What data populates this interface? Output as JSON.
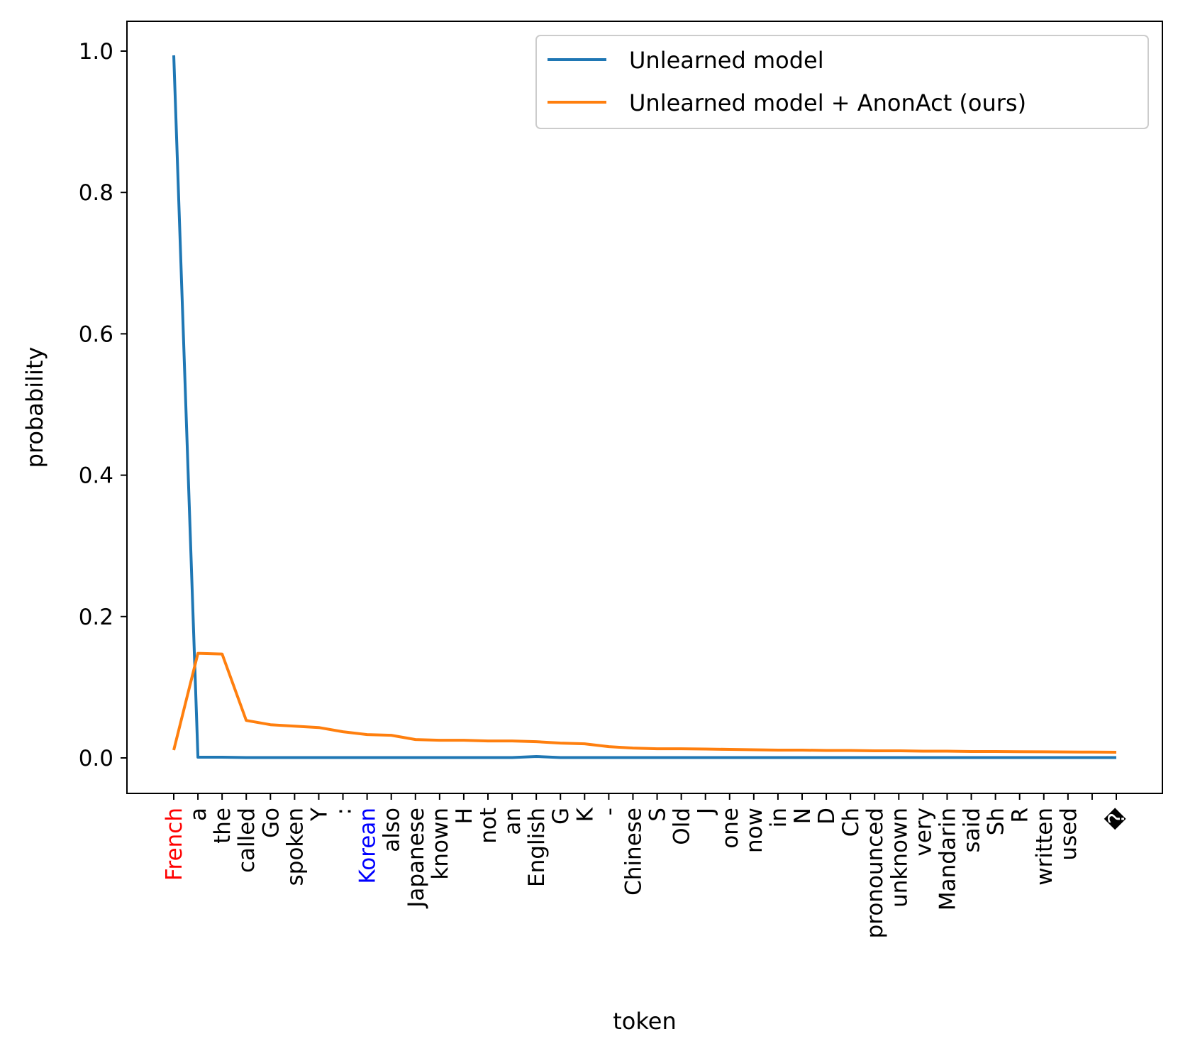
{
  "chart_data": {
    "type": "line",
    "title": "",
    "xlabel": "token",
    "ylabel": "probability",
    "ylim": [
      -0.05,
      1.05
    ],
    "yticks": [
      "0.0",
      "0.2",
      "0.4",
      "0.6",
      "0.8",
      "1.0"
    ],
    "grid": false,
    "legend_position": "top-right",
    "categories": [
      "French",
      "a",
      "the",
      "called",
      "Go",
      "spoken",
      "Y",
      ":",
      "Korean",
      "also",
      "Japanese",
      "known",
      "H",
      "not",
      "an",
      "English",
      "G",
      "K",
      "-",
      "Chinese",
      "S",
      "Old",
      "J",
      "one",
      "now",
      "in",
      "N",
      "D",
      "Ch",
      "pronounced",
      "unknown",
      "very",
      "Mandarin",
      "said",
      "Sh",
      "R",
      "written",
      "used",
      "",
      "�"
    ],
    "category_colors": {
      "French": "#ff0000",
      "Korean": "#0000ff"
    },
    "series": [
      {
        "name": "Unlearned model",
        "color": "#1f77b4",
        "values": [
          0.994,
          0.001,
          0.001,
          0.0005,
          0.0005,
          0.0005,
          0.0005,
          0.0005,
          0.0005,
          0.0005,
          0.0005,
          0.0005,
          0.0005,
          0.0005,
          0.0005,
          0.002,
          0.0005,
          0.0005,
          0.0005,
          0.0005,
          0.0005,
          0.0005,
          0.0005,
          0.0005,
          0.0005,
          0.0005,
          0.0005,
          0.0005,
          0.0005,
          0.0005,
          0.0005,
          0.0005,
          0.0005,
          0.0005,
          0.0005,
          0.0005,
          0.0005,
          0.0005,
          0.0005,
          0.0005
        ]
      },
      {
        "name": "Unlearned model + AnonAct (ours)",
        "color": "#ff7f0e",
        "values": [
          0.011,
          0.148,
          0.147,
          0.053,
          0.047,
          0.045,
          0.043,
          0.037,
          0.033,
          0.032,
          0.026,
          0.025,
          0.025,
          0.024,
          0.024,
          0.023,
          0.021,
          0.02,
          0.016,
          0.014,
          0.013,
          0.013,
          0.0125,
          0.012,
          0.0115,
          0.011,
          0.011,
          0.0105,
          0.0105,
          0.01,
          0.01,
          0.0095,
          0.0095,
          0.009,
          0.009,
          0.0088,
          0.0086,
          0.0084,
          0.0082,
          0.008
        ]
      }
    ]
  }
}
